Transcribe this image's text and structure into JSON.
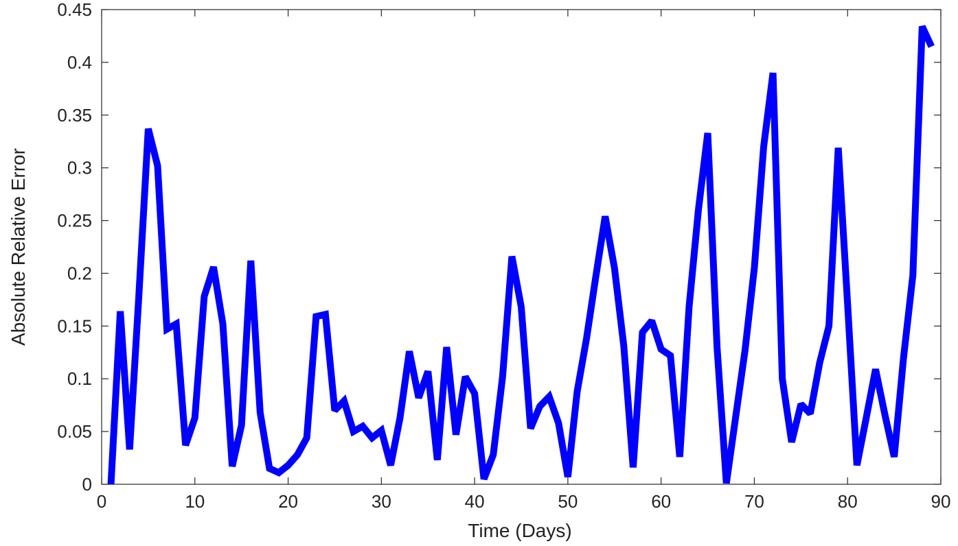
{
  "chart_data": {
    "type": "line",
    "title": "",
    "xlabel": "Time (Days)",
    "ylabel": "Absolute Relative Error",
    "xlim": [
      0,
      90
    ],
    "ylim": [
      0,
      0.45
    ],
    "xticks": [
      0,
      10,
      20,
      30,
      40,
      50,
      60,
      70,
      80,
      90
    ],
    "xtick_labels": [
      "0",
      "10",
      "20",
      "30",
      "40",
      "50",
      "60",
      "70",
      "80",
      "90"
    ],
    "yticks": [
      0,
      0.05,
      0.1,
      0.15,
      0.2,
      0.25,
      0.3,
      0.35,
      0.4,
      0.45
    ],
    "ytick_labels": [
      "0",
      "0.05",
      "0.1",
      "0.15",
      "0.2",
      "0.25",
      "0.3",
      "0.35",
      "0.4",
      "0.45"
    ],
    "grid": false,
    "box": true,
    "line_color": "#0000ff",
    "series": [
      {
        "x": [
          1,
          2,
          3,
          4,
          5,
          6,
          7,
          8,
          9,
          10,
          11,
          12,
          13,
          14,
          15,
          16,
          17,
          18,
          19,
          20,
          21,
          22,
          23,
          24,
          25,
          26,
          27,
          28,
          29,
          30,
          31,
          32,
          33,
          34,
          35,
          36,
          37,
          38,
          39,
          40,
          41,
          42,
          43,
          44,
          45,
          46,
          47,
          48,
          49,
          50,
          51,
          52,
          53,
          54,
          55,
          56,
          57,
          58,
          59,
          60,
          61,
          62,
          63,
          64,
          65,
          66,
          67,
          68,
          69,
          70,
          71,
          72,
          73,
          74,
          75,
          76,
          77,
          78,
          79,
          80,
          81,
          82,
          83,
          84,
          85,
          86,
          87,
          88,
          89
        ],
        "values": [
          0.0,
          0.164,
          0.033,
          0.18,
          0.337,
          0.302,
          0.147,
          0.152,
          0.037,
          0.063,
          0.178,
          0.206,
          0.152,
          0.017,
          0.056,
          0.212,
          0.068,
          0.015,
          0.011,
          0.018,
          0.028,
          0.044,
          0.159,
          0.161,
          0.07,
          0.079,
          0.05,
          0.055,
          0.044,
          0.051,
          0.018,
          0.063,
          0.126,
          0.082,
          0.107,
          0.023,
          0.13,
          0.047,
          0.102,
          0.086,
          0.005,
          0.028,
          0.102,
          0.216,
          0.168,
          0.053,
          0.074,
          0.083,
          0.058,
          0.007,
          0.088,
          0.138,
          0.197,
          0.254,
          0.205,
          0.131,
          0.016,
          0.144,
          0.155,
          0.128,
          0.122,
          0.026,
          0.168,
          0.26,
          0.333,
          0.13,
          0.001,
          0.064,
          0.127,
          0.205,
          0.32,
          0.39,
          0.1,
          0.04,
          0.076,
          0.067,
          0.115,
          0.15,
          0.319,
          0.171,
          0.018,
          0.063,
          0.109,
          0.066,
          0.026,
          0.12,
          0.198,
          0.434,
          0.415
        ]
      }
    ]
  }
}
